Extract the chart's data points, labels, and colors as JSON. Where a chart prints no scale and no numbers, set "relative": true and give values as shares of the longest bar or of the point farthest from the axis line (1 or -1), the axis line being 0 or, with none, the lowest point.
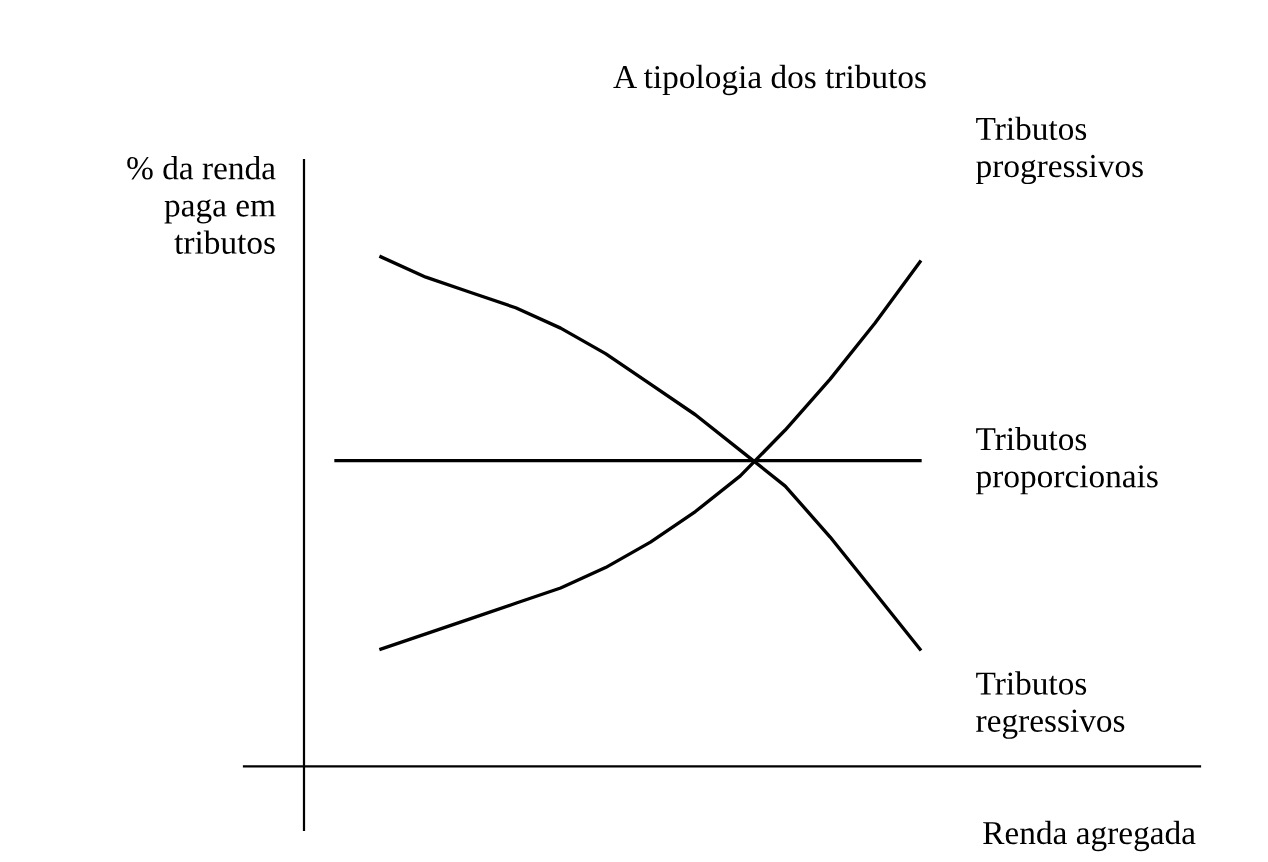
{
  "chart_data": {
    "type": "line",
    "title": "A tipologia dos tributos",
    "xlabel": "Renda agregada",
    "ylabel": "% da renda paga em tributos",
    "relative": true,
    "legend": false,
    "marker": "none",
    "line_style": "solid",
    "categories": [
      null,
      null,
      null,
      null,
      null,
      null,
      null,
      null,
      null,
      null,
      null,
      null,
      null,
      null
    ],
    "series": [
      {
        "name": "Tributos progressivos",
        "color": "#000000",
        "values": [
          null,
          0.23,
          0.26,
          0.29,
          0.32,
          0.35,
          0.39,
          0.44,
          0.5,
          0.57,
          0.66,
          0.76,
          0.87,
          0.99
        ]
      },
      {
        "name": "Tributos proporcionais",
        "color": "#000000",
        "values": [
          0.6,
          0.6,
          0.6,
          0.6,
          0.6,
          0.6,
          0.6,
          0.6,
          0.6,
          0.6,
          0.6,
          0.6,
          0.6,
          0.6
        ]
      },
      {
        "name": "Tributos regressivos",
        "color": "#000000",
        "values": [
          null,
          1.0,
          0.96,
          0.93,
          0.9,
          0.86,
          0.81,
          0.75,
          0.69,
          0.62,
          0.55,
          0.45,
          0.34,
          0.23
        ]
      }
    ]
  }
}
